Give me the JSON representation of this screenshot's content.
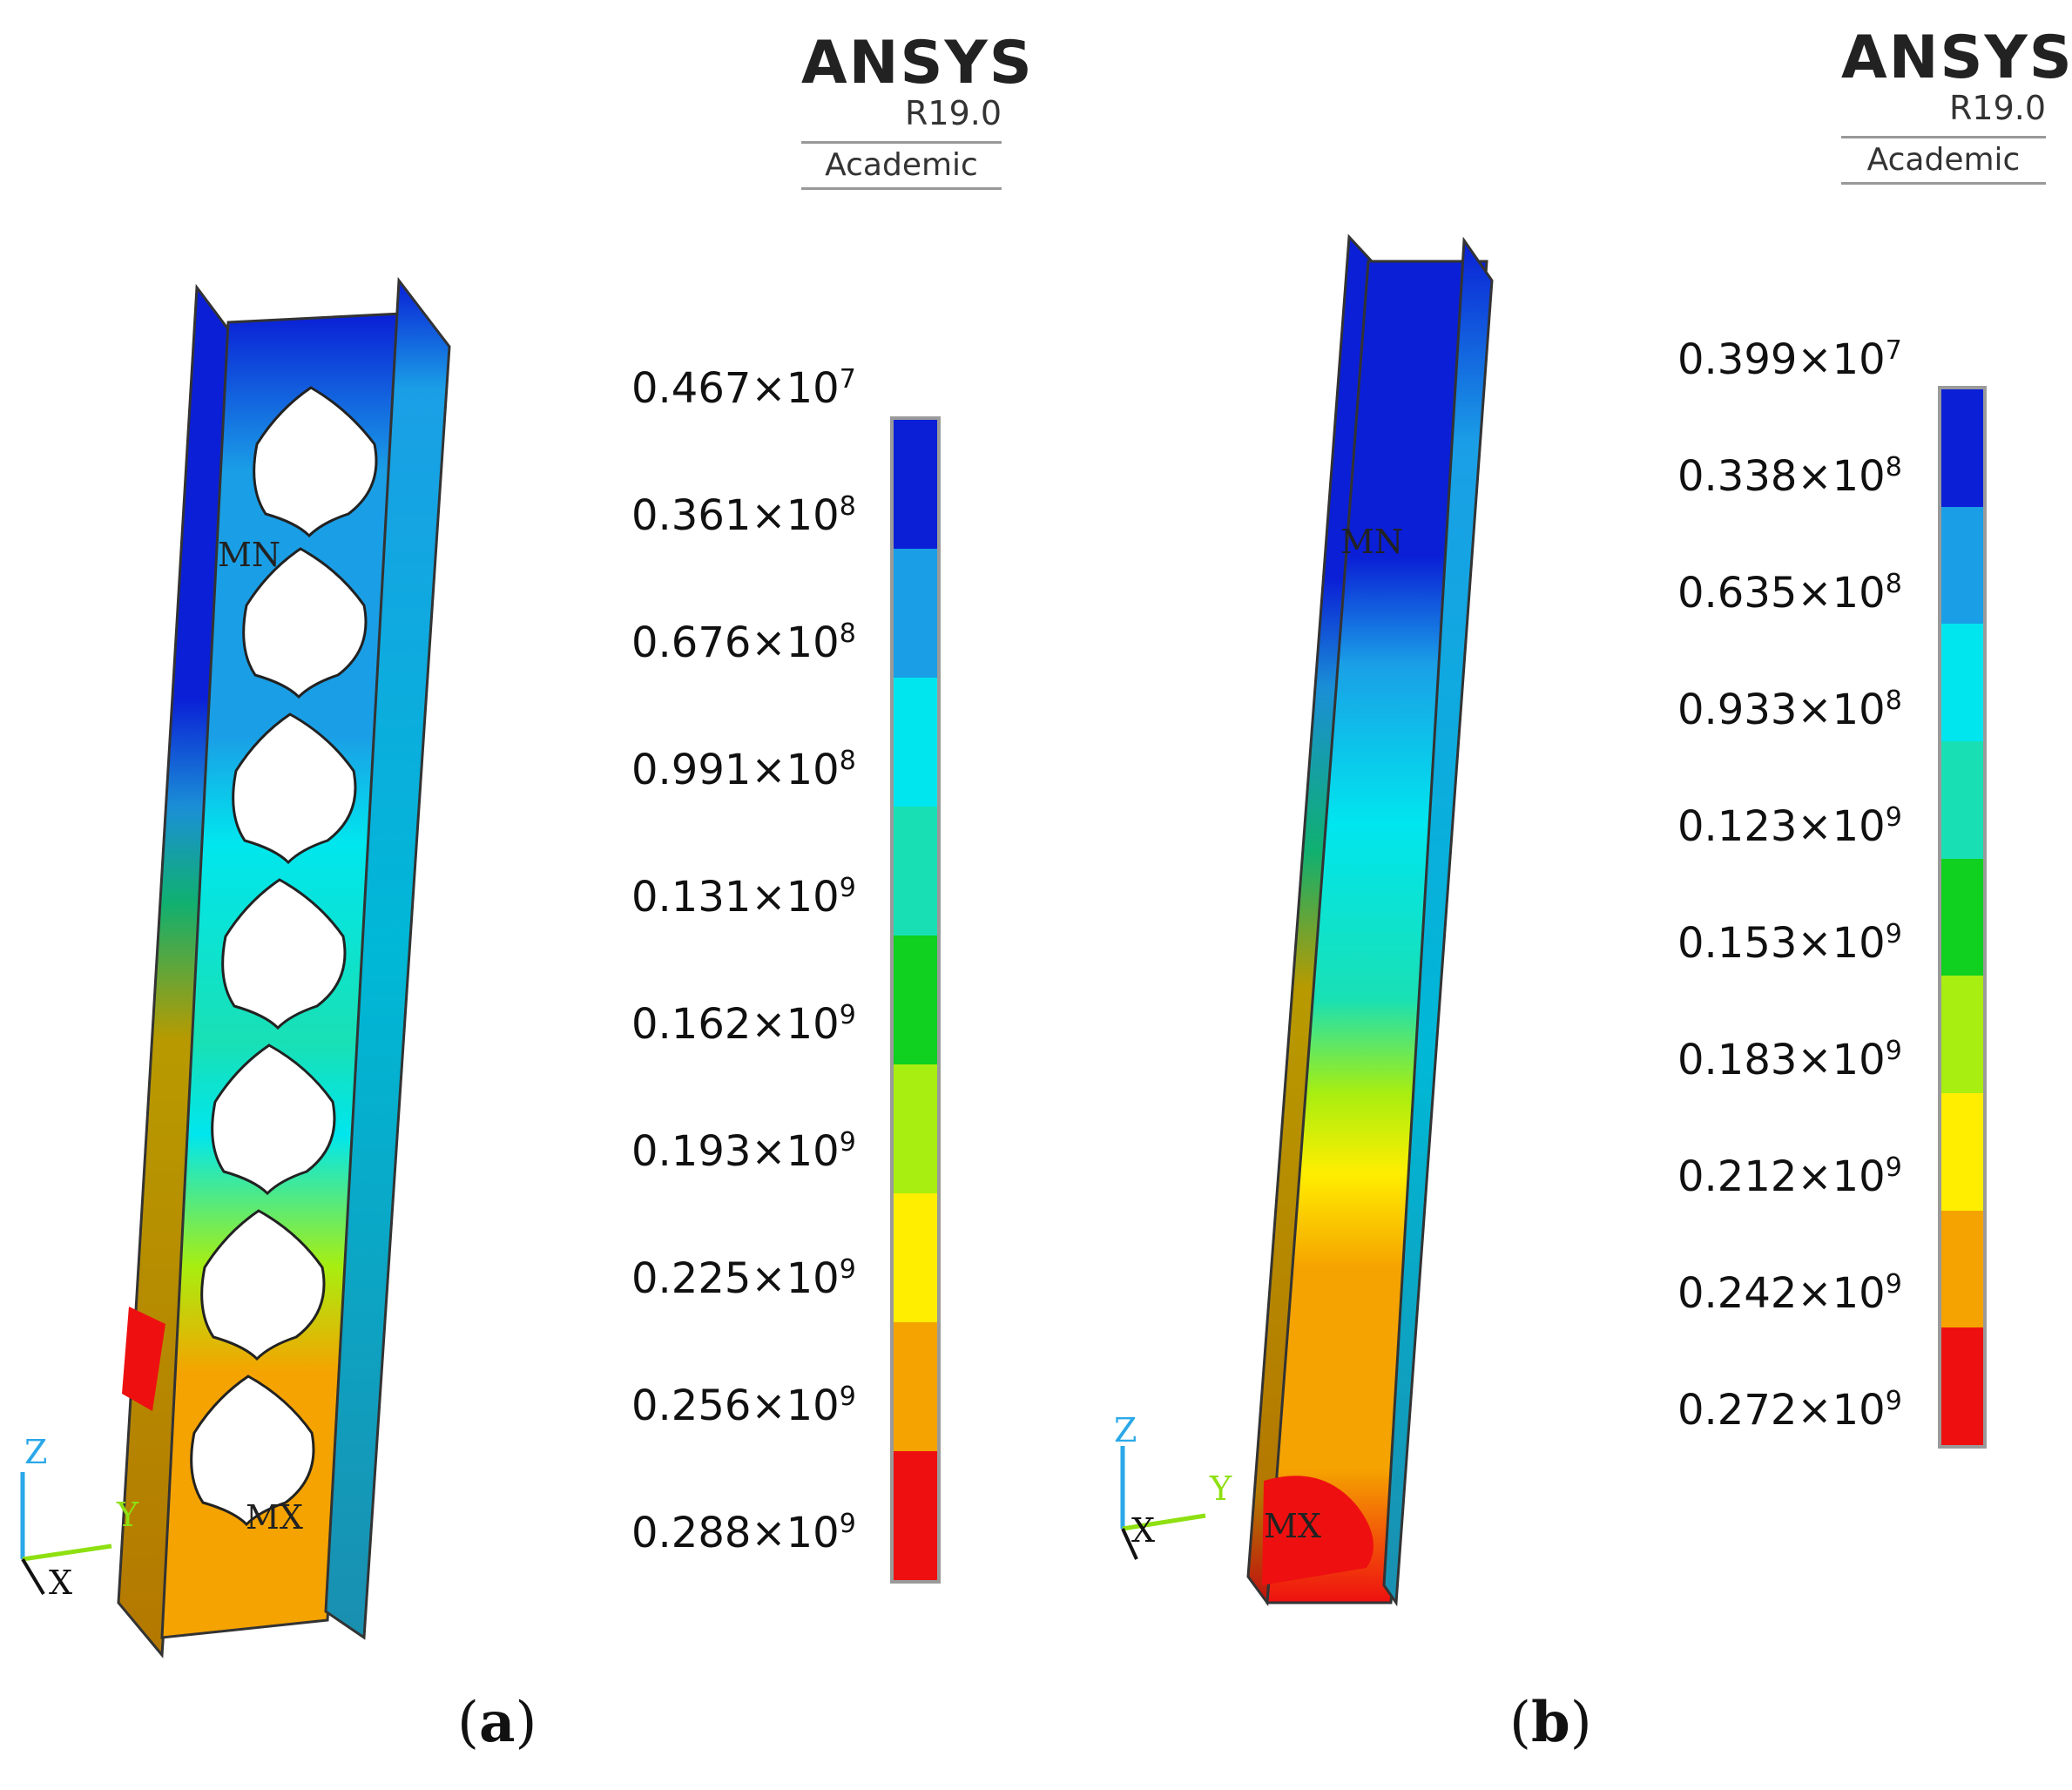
{
  "panels": [
    {
      "id": "a",
      "caption_letter": "a",
      "logo": {
        "brand": "ANSYS",
        "version": "R19.0",
        "edition": "Academic"
      },
      "legend": [
        {
          "mantissa": "0.467",
          "exp": "7"
        },
        {
          "mantissa": "0.361",
          "exp": "8"
        },
        {
          "mantissa": "0.676",
          "exp": "8"
        },
        {
          "mantissa": "0.991",
          "exp": "8"
        },
        {
          "mantissa": "0.131",
          "exp": "9"
        },
        {
          "mantissa": "0.162",
          "exp": "9"
        },
        {
          "mantissa": "0.193",
          "exp": "9"
        },
        {
          "mantissa": "0.225",
          "exp": "9"
        },
        {
          "mantissa": "0.256",
          "exp": "9"
        },
        {
          "mantissa": "0.288",
          "exp": "9"
        }
      ],
      "min_marker": "MN",
      "max_marker": "MX",
      "axes": {
        "z": "Z",
        "y": "Y",
        "x": "X"
      }
    },
    {
      "id": "b",
      "caption_letter": "b",
      "logo": {
        "brand": "ANSYS",
        "version": "R19.0",
        "edition": "Academic"
      },
      "legend": [
        {
          "mantissa": "0.399",
          "exp": "7"
        },
        {
          "mantissa": "0.338",
          "exp": "8"
        },
        {
          "mantissa": "0.635",
          "exp": "8"
        },
        {
          "mantissa": "0.933",
          "exp": "8"
        },
        {
          "mantissa": "0.123",
          "exp": "9"
        },
        {
          "mantissa": "0.153",
          "exp": "9"
        },
        {
          "mantissa": "0.183",
          "exp": "9"
        },
        {
          "mantissa": "0.212",
          "exp": "9"
        },
        {
          "mantissa": "0.242",
          "exp": "9"
        },
        {
          "mantissa": "0.272",
          "exp": "9"
        }
      ],
      "min_marker": "MN",
      "max_marker": "MX",
      "axes": {
        "z": "Z",
        "y": "Y",
        "x": "X"
      }
    }
  ],
  "colors": {
    "band_colors": [
      "#0a1fd6",
      "#1a9fe6",
      "#00e6ee",
      "#19e0b4",
      "#10d020",
      "#a8ee10",
      "#ffee00",
      "#f5a300",
      "#ee1010"
    ],
    "bar_border": "#9a9a9a"
  }
}
